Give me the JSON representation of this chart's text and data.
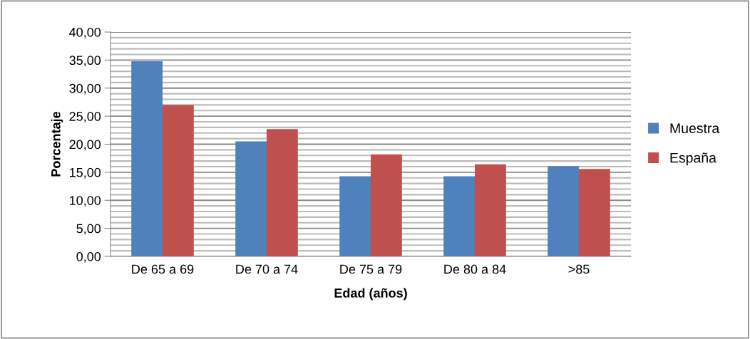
{
  "chart_data": {
    "type": "bar",
    "xlabel": "Edad (años)",
    "ylabel": "Porcentaje",
    "categories": [
      "De 65 a 69",
      "De 70 a 74",
      "De 75 a 79",
      "De 80 a 84",
      ">85"
    ],
    "series": [
      {
        "name": "Muestra",
        "color": "#4f81bd",
        "values": [
          34.8,
          20.5,
          14.3,
          14.3,
          16.1
        ]
      },
      {
        "name": "España",
        "color": "#c0504d",
        "values": [
          27.0,
          22.7,
          18.2,
          16.4,
          15.6
        ]
      }
    ],
    "ylim": [
      0,
      40
    ],
    "yticks": [
      {
        "value": 0,
        "label": "0,00"
      },
      {
        "value": 5,
        "label": "5,00"
      },
      {
        "value": 10,
        "label": "10,00"
      },
      {
        "value": 15,
        "label": "15,00"
      },
      {
        "value": 20,
        "label": "20,00"
      },
      {
        "value": 25,
        "label": "25,00"
      },
      {
        "value": 30,
        "label": "30,00"
      },
      {
        "value": 35,
        "label": "35,00"
      },
      {
        "value": 40,
        "label": "40,00"
      }
    ],
    "grid": "y",
    "legend": "right"
  }
}
